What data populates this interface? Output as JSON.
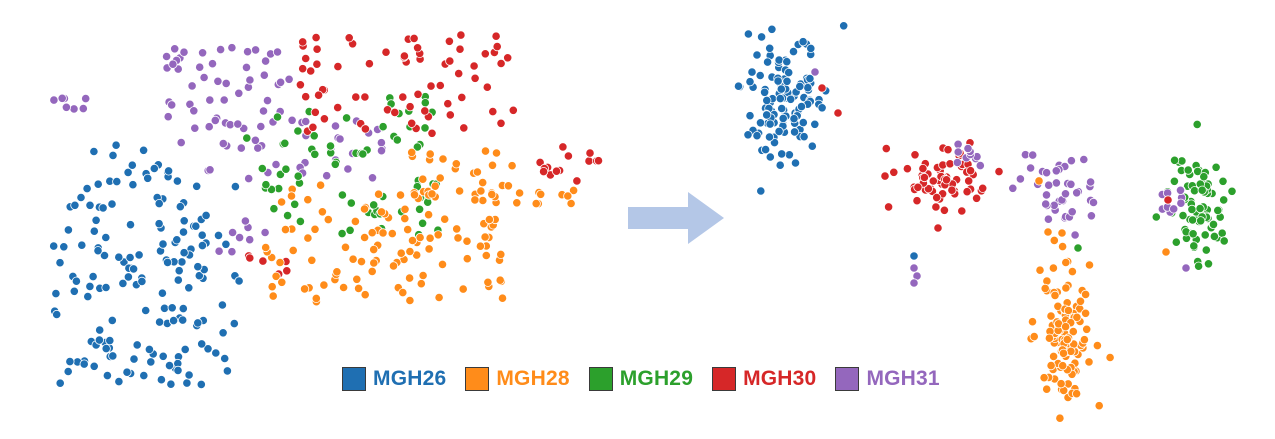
{
  "chart_data": [
    {
      "type": "scatter",
      "panel": "left",
      "series": [
        {
          "name": "MGH26",
          "color": "#1f6fb2"
        },
        {
          "name": "MGH28",
          "color": "#ff8c1a"
        },
        {
          "name": "MGH29",
          "color": "#2ca02c"
        },
        {
          "name": "MGH30",
          "color": "#d62728"
        },
        {
          "name": "MGH31",
          "color": "#9467bd"
        }
      ]
    },
    {
      "type": "scatter",
      "panel": "right",
      "series": [
        {
          "name": "MGH26",
          "color": "#1f6fb2"
        },
        {
          "name": "MGH28",
          "color": "#ff8c1a"
        },
        {
          "name": "MGH29",
          "color": "#2ca02c"
        },
        {
          "name": "MGH30",
          "color": "#d62728"
        },
        {
          "name": "MGH31",
          "color": "#9467bd"
        }
      ]
    }
  ],
  "legend": {
    "items": [
      {
        "label": "MGH26",
        "color": "#1f6fb2"
      },
      {
        "label": "MGH28",
        "color": "#ff8c1a"
      },
      {
        "label": "MGH29",
        "color": "#2ca02c"
      },
      {
        "label": "MGH30",
        "color": "#d62728"
      },
      {
        "label": "MGH31",
        "color": "#9467bd"
      }
    ]
  },
  "arrow": {
    "color": "#b4c7e7",
    "icon": "right-arrow-icon"
  }
}
